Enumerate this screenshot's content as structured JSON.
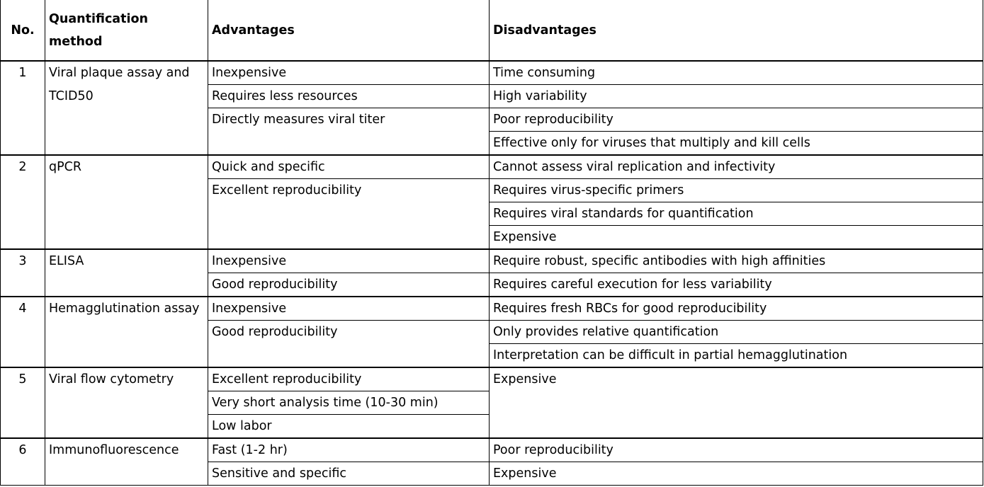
{
  "headers": {
    "no": "No.",
    "method": "Quantification method",
    "advantages": "Advantages",
    "disadvantages": "Disadvantages"
  },
  "groups": [
    {
      "no": "1",
      "method": "Viral plaque assay and TCID50",
      "advantages": [
        "Inexpensive",
        "Requires less resources",
        "Directly measures viral titer"
      ],
      "disadvantages": [
        "Time consuming",
        "High variability",
        "Poor reproducibility",
        "Effective only for viruses that multiply and kill cells"
      ]
    },
    {
      "no": "2",
      "method": "qPCR",
      "advantages": [
        "Quick and specific",
        "Excellent reproducibility"
      ],
      "disadvantages": [
        "Cannot assess viral replication and infectivity",
        "Requires virus-specific primers",
        "Requires viral standards for quantification",
        "Expensive"
      ]
    },
    {
      "no": "3",
      "method": "ELISA",
      "advantages": [
        "Inexpensive",
        "Good reproducibility"
      ],
      "disadvantages": [
        "Require robust, specific antibodies with high affinities",
        "Requires careful execution for less variability"
      ]
    },
    {
      "no": "4",
      "method": "Hemagglutination assay",
      "advantages": [
        "Inexpensive",
        "Good reproducibility"
      ],
      "disadvantages": [
        "Requires fresh RBCs for good reproducibility",
        "Only provides relative quantification",
        "Interpretation can be difficult in partial hemagglutination"
      ]
    },
    {
      "no": "5",
      "method": "Viral flow cytometry",
      "advantages": [
        "Excellent reproducibility",
        "Very short analysis time (10-30 min)",
        "Low labor"
      ],
      "disadvantages": [
        "Expensive"
      ]
    },
    {
      "no": "6",
      "method": "Immunofluorescence",
      "advantages": [
        "Fast (1-2 hr)",
        "Sensitive and specific"
      ],
      "disadvantages": [
        "Poor reproducibility",
        "Expensive"
      ]
    }
  ]
}
